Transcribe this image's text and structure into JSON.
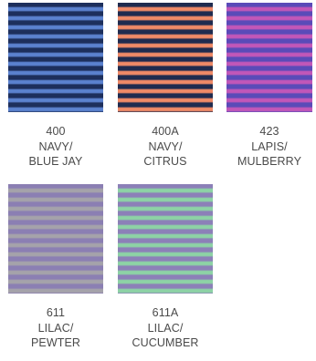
{
  "swatches": [
    {
      "code": "400",
      "name_line1": "NAVY/",
      "name_line2": "BLUE JAY",
      "colors": {
        "dark": "#1d2f5c",
        "light": "#5b82cf"
      }
    },
    {
      "code": "400A",
      "name_line1": "NAVY/",
      "name_line2": "CITRUS",
      "colors": {
        "dark": "#1f2b4f",
        "light": "#f08a67"
      }
    },
    {
      "code": "423",
      "name_line1": "LAPIS/",
      "name_line2": "MULBERRY",
      "colors": {
        "dark": "#5a4bb8",
        "light": "#c257b8"
      }
    },
    {
      "code": "611",
      "name_line1": "LILAC/",
      "name_line2": "PEWTER",
      "colors": {
        "dark": "#8b7fb3",
        "light": "#a5a3aa"
      }
    },
    {
      "code": "611A",
      "name_line1": "LILAC/",
      "name_line2": "CUCUMBER",
      "colors": {
        "dark": "#8c80b8",
        "light": "#8dd3a5"
      }
    }
  ]
}
